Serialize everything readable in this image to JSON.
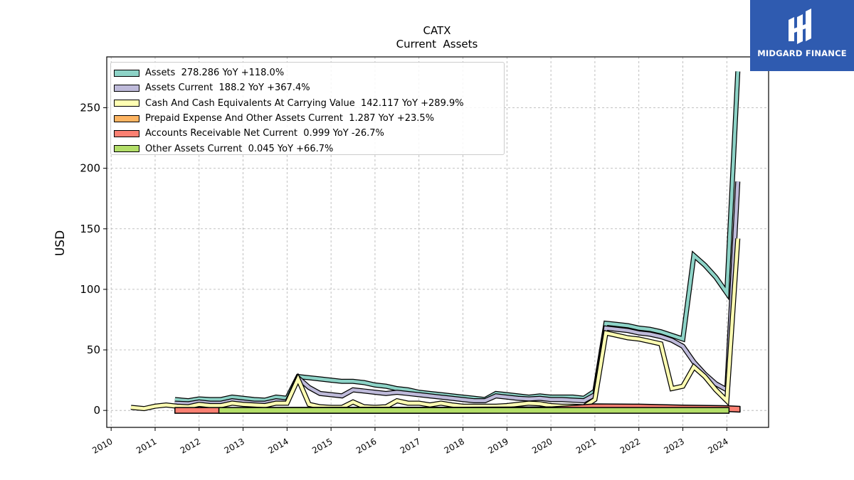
{
  "brand": {
    "name": "MIDGARD FINANCE",
    "color": "#2f5bb0"
  },
  "chart_data": {
    "type": "line",
    "title": "CATX",
    "subtitle": "Current  Assets",
    "ylabel": "USD",
    "xlabel": "",
    "ylim": [
      -14,
      292
    ],
    "xlim": [
      2009.9,
      2024.95
    ],
    "x_ticks": [
      "2010",
      "2011",
      "2012",
      "2013",
      "2014",
      "2015",
      "2016",
      "2017",
      "2018",
      "2019",
      "2020",
      "2021",
      "2022",
      "2023",
      "2024"
    ],
    "y_ticks": [
      0,
      50,
      100,
      150,
      200,
      250
    ],
    "grid": true,
    "legend_position": "top-left",
    "series": [
      {
        "name": "Assets  278.286 YoY +118.0%",
        "color": "#8dd3c7",
        "style": "line",
        "x": [
          2011.45,
          2011.75,
          2012.0,
          2012.25,
          2012.5,
          2012.75,
          2013.0,
          2013.25,
          2013.5,
          2013.75,
          2014.0,
          2014.25,
          2014.5,
          2014.75,
          2015.0,
          2015.25,
          2015.5,
          2015.75,
          2016.0,
          2016.25,
          2016.5,
          2016.75,
          2017.0,
          2017.25,
          2017.5,
          2017.75,
          2018.0,
          2018.25,
          2018.5,
          2018.75,
          2019.0,
          2019.25,
          2019.5,
          2019.75,
          2020.0,
          2020.25,
          2020.5,
          2020.75,
          2021.0,
          2021.25,
          2021.5,
          2021.75,
          2022.0,
          2022.25,
          2022.5,
          2022.75,
          2023.0,
          2023.25,
          2023.5,
          2023.75,
          2024.0,
          2024.25
        ],
        "y": [
          9,
          8,
          9.5,
          9,
          9,
          11,
          10,
          9,
          8.5,
          11,
          10,
          28,
          27,
          26,
          25,
          24,
          24,
          23,
          21,
          20,
          18,
          17,
          15,
          14,
          13,
          12,
          11,
          10,
          9,
          14,
          13,
          12,
          11,
          12,
          11,
          11,
          11,
          10,
          16,
          72,
          71,
          70,
          68,
          67,
          65,
          62,
          59,
          128,
          120,
          110,
          97,
          280
        ]
      },
      {
        "name": "Assets Current  188.2 YoY +367.4%",
        "color": "#bebada",
        "style": "line",
        "x": [
          2011.45,
          2011.75,
          2012.0,
          2012.25,
          2012.5,
          2012.75,
          2013.0,
          2013.25,
          2013.5,
          2013.75,
          2014.0,
          2014.25,
          2014.5,
          2014.75,
          2015.0,
          2015.25,
          2015.5,
          2015.75,
          2016.0,
          2016.25,
          2016.5,
          2016.75,
          2017.0,
          2017.25,
          2017.5,
          2017.75,
          2018.0,
          2018.25,
          2018.5,
          2018.75,
          2019.0,
          2019.25,
          2019.5,
          2019.75,
          2020.0,
          2020.25,
          2020.5,
          2020.75,
          2021.0,
          2021.25,
          2021.5,
          2021.75,
          2022.0,
          2022.25,
          2022.5,
          2022.75,
          2023.0,
          2023.25,
          2023.5,
          2023.75,
          2024.0,
          2024.25
        ],
        "y": [
          6,
          5.5,
          7,
          6,
          6,
          8,
          7,
          6,
          6,
          8,
          7,
          27,
          19,
          14,
          13,
          12,
          17,
          16,
          15,
          14,
          15,
          14,
          13,
          12,
          11,
          10,
          9,
          8,
          8,
          12,
          11,
          10,
          9.5,
          10,
          9,
          9,
          8.5,
          8,
          13,
          68,
          67,
          66,
          64,
          63,
          61,
          58,
          53,
          40,
          30,
          22,
          17,
          189
        ]
      },
      {
        "name": "Cash And Cash Equivalents At Carrying Value  142.117 YoY +289.9%",
        "color": "#ffffb3",
        "style": "line",
        "x": [
          2010.45,
          2010.75,
          2011.0,
          2011.25,
          2011.5,
          2011.75,
          2012.0,
          2012.25,
          2012.5,
          2012.75,
          2013.0,
          2013.25,
          2013.5,
          2013.75,
          2014.0,
          2014.25,
          2014.5,
          2014.75,
          2015.0,
          2015.25,
          2015.5,
          2015.75,
          2016.0,
          2016.25,
          2016.5,
          2016.75,
          2017.0,
          2017.25,
          2017.5,
          2017.75,
          2018.0,
          2018.25,
          2018.5,
          2018.75,
          2019.0,
          2019.25,
          2019.5,
          2019.75,
          2020.0,
          2020.25,
          2020.5,
          2020.75,
          2021.0,
          2021.25,
          2021.5,
          2021.75,
          2022.0,
          2022.25,
          2022.5,
          2022.75,
          2023.0,
          2023.25,
          2023.5,
          2023.75,
          2024.0,
          2024.25
        ],
        "y": [
          2.5,
          1.5,
          3.5,
          4.5,
          3.5,
          3,
          5,
          4,
          4,
          6,
          5,
          4.5,
          4,
          6,
          6,
          26,
          5,
          3,
          2.5,
          2.5,
          7,
          3,
          2.5,
          3,
          8,
          6,
          6,
          4.5,
          6,
          4.5,
          3.5,
          3.5,
          3.5,
          3.5,
          4,
          5,
          6,
          5.5,
          4,
          3.5,
          3.5,
          3,
          9,
          64,
          62,
          60,
          59,
          57,
          55,
          18,
          20,
          36,
          28,
          17,
          8,
          142
        ]
      },
      {
        "name": "Prepaid Expense And Other Assets Current  1.287 YoY +23.5%",
        "color": "#fdb462",
        "style": "line",
        "x": [
          2011.45,
          2012.0,
          2013.0,
          2014.0,
          2015.0,
          2016.0,
          2017.0,
          2018.0,
          2019.0,
          2020.0,
          2021.0,
          2022.0,
          2023.0,
          2024.25
        ],
        "y": [
          0.5,
          0.6,
          0.7,
          0.8,
          0.9,
          1.0,
          1.0,
          1.0,
          1.1,
          1.1,
          1.2,
          1.2,
          1.1,
          1.287
        ]
      },
      {
        "name": "Accounts Receivable Net Current  0.999 YoY -26.7%",
        "color": "#fb8072",
        "style": "band",
        "x": [
          2011.45,
          2012.5,
          2014.0,
          2016.0,
          2018.0,
          2020.0,
          2021.0,
          2022.0,
          2023.0,
          2024.0,
          2024.3
        ],
        "y": [
          0.0,
          0.0,
          0.0,
          0.0,
          0.0,
          0.5,
          3.0,
          2.8,
          2.0,
          1.5,
          0.999
        ]
      },
      {
        "name": "Other Assets Current  0.045 YoY +66.7%",
        "color": "#b3de69",
        "style": "band",
        "x": [
          2012.45,
          2014.0,
          2016.0,
          2018.0,
          2020.0,
          2022.0,
          2024.05
        ],
        "y": [
          0.03,
          0.03,
          0.03,
          0.03,
          0.03,
          0.03,
          0.045
        ]
      }
    ]
  }
}
